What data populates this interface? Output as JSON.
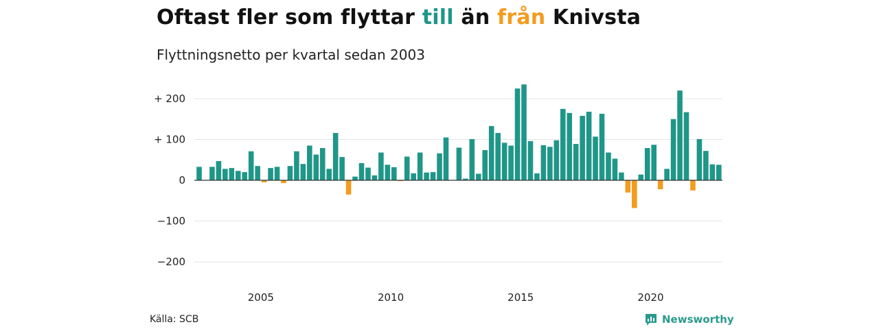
{
  "title": {
    "part1": "Oftast fler som flyttar ",
    "till": "till",
    "part2": " än ",
    "fran": "från",
    "part3": " Knivsta"
  },
  "subtitle": "Flyttningsnetto per kvartal sedan 2003",
  "source": "Källa: SCB",
  "brand": "Newsworthy",
  "colors": {
    "positive": "#1f9688",
    "negative": "#f39c1f",
    "grid": "#e3e3e3",
    "baseline": "#333333"
  },
  "chart_data": {
    "type": "bar",
    "quarter_start": "2003 Q1",
    "ylim": [
      -200,
      250
    ],
    "yticks": [
      {
        "value": 200,
        "label": "+ 200"
      },
      {
        "value": 100,
        "label": "+ 100"
      },
      {
        "value": 0,
        "label": "0"
      },
      {
        "value": -100,
        "label": "−100"
      },
      {
        "value": -200,
        "label": "−200"
      }
    ],
    "xticks": [
      {
        "year": 2005,
        "label": "2005"
      },
      {
        "year": 2010,
        "label": "2010"
      },
      {
        "year": 2015,
        "label": "2015"
      },
      {
        "year": 2020,
        "label": "2020"
      }
    ],
    "values": [
      33,
      0,
      33,
      47,
      28,
      30,
      23,
      20,
      71,
      35,
      -5,
      30,
      33,
      -7,
      35,
      71,
      40,
      85,
      63,
      79,
      28,
      116,
      57,
      -35,
      9,
      42,
      31,
      12,
      68,
      38,
      32,
      -2,
      58,
      17,
      68,
      19,
      20,
      66,
      105,
      0,
      80,
      4,
      101,
      16,
      74,
      133,
      116,
      92,
      85,
      225,
      235,
      96,
      17,
      86,
      82,
      98,
      175,
      165,
      89,
      158,
      168,
      107,
      163,
      68,
      53,
      19,
      -30,
      -68,
      14,
      79,
      87,
      -22,
      28,
      150,
      220,
      167,
      -25,
      101,
      72,
      39,
      38
    ]
  }
}
